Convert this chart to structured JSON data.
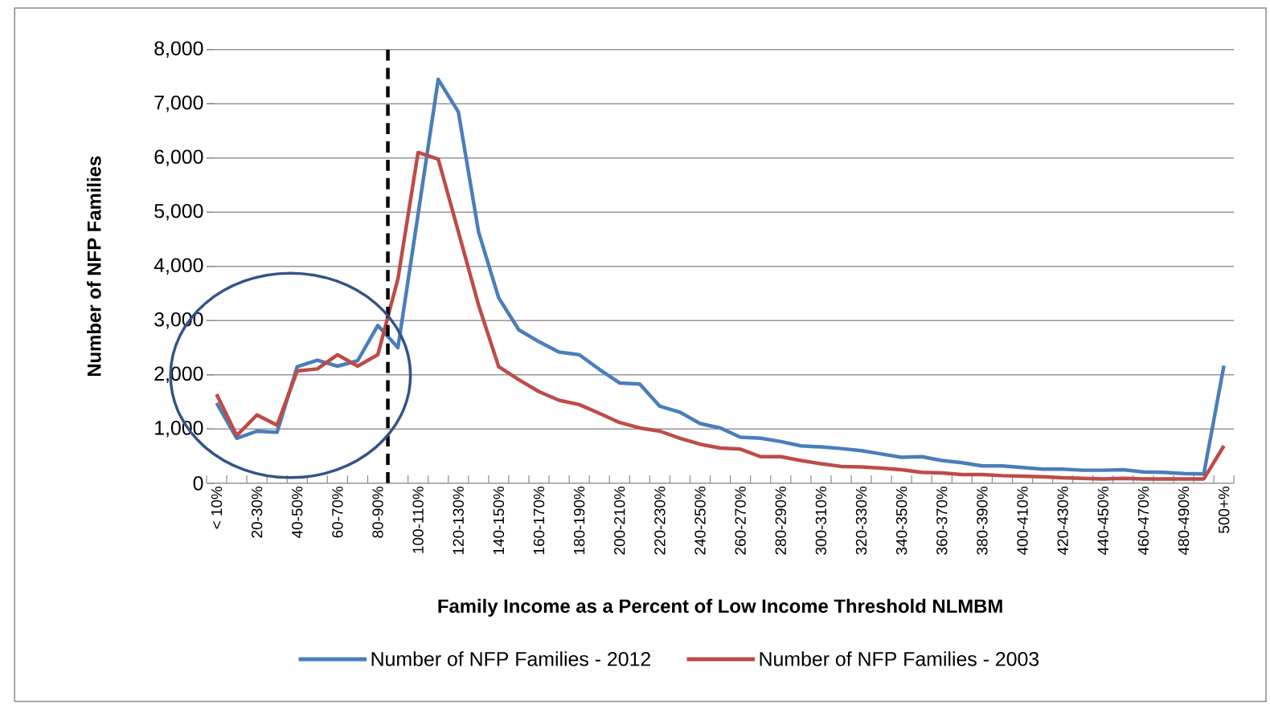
{
  "chart_data": {
    "type": "line",
    "xlabel": "Family Income as a Percent of Low Income Threshold NLMBM",
    "ylabel": "Number of NFP Families",
    "categories": [
      "< 10%",
      null,
      "20-30%",
      null,
      "40-50%",
      null,
      "60-70%",
      null,
      "80-90%",
      null,
      "100-110%",
      null,
      "120-130%",
      null,
      "140-150%",
      null,
      "160-170%",
      null,
      "180-190%",
      null,
      "200-210%",
      null,
      "220-230%",
      null,
      "240-250%",
      null,
      "260-270%",
      null,
      "280-290%",
      null,
      "300-310%",
      null,
      "320-330%",
      null,
      "340-350%",
      null,
      "360-370%",
      null,
      "380-390%",
      null,
      "400-410%",
      null,
      "420-430%",
      null,
      "440-450%",
      null,
      "460-470%",
      null,
      "480-490%",
      null,
      "500+%"
    ],
    "series": [
      {
        "name": "Number of NFP Families - 2012",
        "color": "#4a7ebb",
        "values": [
          1480,
          830,
          960,
          940,
          2150,
          2270,
          2160,
          2260,
          2910,
          2500,
          4960,
          7450,
          6850,
          4640,
          3420,
          2830,
          2610,
          2420,
          2370,
          2100,
          1850,
          1830,
          1420,
          1310,
          1100,
          1020,
          850,
          830,
          770,
          690,
          670,
          640,
          600,
          540,
          480,
          490,
          420,
          380,
          320,
          320,
          290,
          260,
          260,
          240,
          240,
          250,
          210,
          200,
          180,
          170,
          2170
        ]
      },
      {
        "name": "Number of NFP Families - 2003",
        "color": "#be4b48",
        "values": [
          1640,
          880,
          1260,
          1070,
          2070,
          2110,
          2370,
          2160,
          2370,
          3770,
          6100,
          5980,
          4640,
          3290,
          2150,
          1910,
          1690,
          1530,
          1450,
          1290,
          1120,
          1020,
          960,
          830,
          720,
          650,
          630,
          490,
          490,
          420,
          360,
          310,
          300,
          280,
          250,
          200,
          190,
          160,
          160,
          140,
          130,
          120,
          100,
          90,
          80,
          90,
          80,
          80,
          80,
          80,
          690
        ]
      }
    ],
    "ylim": [
      0,
      8000
    ],
    "yticks": [
      0,
      {
        "value": 1000,
        "label": "1,000"
      },
      {
        "value": 2000,
        "label": "2,000"
      },
      {
        "value": 3000,
        "label": "3,000"
      },
      {
        "value": 4000,
        "label": "4,000"
      },
      {
        "value": 5000,
        "label": "5,000"
      },
      {
        "value": 6000,
        "label": "6,000"
      },
      {
        "value": 7000,
        "label": "7,000"
      },
      {
        "value": 8000,
        "label": "8,000"
      }
    ],
    "ref_lines": [
      {
        "axis": "x",
        "value": "80-90%",
        "color": "#000000",
        "line_style": "dashed"
      }
    ],
    "grid": "y",
    "legend": "bottom"
  }
}
